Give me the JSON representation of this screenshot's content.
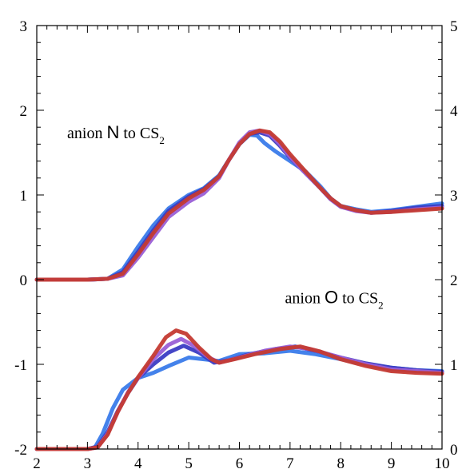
{
  "chart_data": {
    "type": "line",
    "title": "",
    "xlabel": "",
    "ylabel": "",
    "y2label": "",
    "xlim": [
      2,
      10
    ],
    "ylim": [
      -2,
      3
    ],
    "y2lim": [
      0,
      5
    ],
    "x_ticks": [
      2,
      3,
      4,
      5,
      6,
      7,
      8,
      9,
      10
    ],
    "x_tick_labels": [
      "2",
      "3",
      "4",
      "5",
      "6",
      "7",
      "8",
      "9",
      "10"
    ],
    "y_ticks": [
      -2,
      -1,
      0,
      1,
      2,
      3
    ],
    "y_tick_labels": [
      "-2",
      "-1",
      "0",
      "1",
      "2",
      "3"
    ],
    "y2_ticks": [
      0,
      1,
      2,
      3,
      4,
      5
    ],
    "y2_tick_labels": [
      "0",
      "1",
      "2",
      "3",
      "4",
      "5"
    ],
    "grid": false,
    "legend": "none",
    "annotations": [
      {
        "prefix": "anion ",
        "atom": "N",
        "suffix": " to CS",
        "sub": "2",
        "x": 2.6,
        "y": 1.67
      },
      {
        "prefix": "anion ",
        "atom": "O",
        "suffix": " to CS",
        "sub": "2",
        "x": 6.9,
        "y": -0.28
      }
    ],
    "series": [
      {
        "group": "N",
        "color": "#3a7bea",
        "points": [
          [
            2,
            0
          ],
          [
            3,
            0
          ],
          [
            3.4,
            0.01
          ],
          [
            3.7,
            0.12
          ],
          [
            4.0,
            0.39
          ],
          [
            4.3,
            0.64
          ],
          [
            4.6,
            0.84
          ],
          [
            5.0,
            1.0
          ],
          [
            5.3,
            1.08
          ],
          [
            5.6,
            1.23
          ],
          [
            5.8,
            1.42
          ],
          [
            6.0,
            1.6
          ],
          [
            6.2,
            1.71
          ],
          [
            6.35,
            1.7
          ],
          [
            6.5,
            1.61
          ],
          [
            6.7,
            1.52
          ],
          [
            7.0,
            1.4
          ],
          [
            7.3,
            1.28
          ],
          [
            7.6,
            1.1
          ],
          [
            7.8,
            0.96
          ],
          [
            8.0,
            0.87
          ],
          [
            8.3,
            0.83
          ],
          [
            8.6,
            0.8
          ],
          [
            9.0,
            0.82
          ],
          [
            9.5,
            0.86
          ],
          [
            10,
            0.9
          ]
        ]
      },
      {
        "group": "N",
        "color": "#3b3cc4",
        "points": [
          [
            2,
            0
          ],
          [
            3,
            0
          ],
          [
            3.4,
            0.01
          ],
          [
            3.7,
            0.09
          ],
          [
            4.0,
            0.33
          ],
          [
            4.3,
            0.58
          ],
          [
            4.6,
            0.81
          ],
          [
            5.0,
            0.98
          ],
          [
            5.3,
            1.07
          ],
          [
            5.6,
            1.22
          ],
          [
            5.8,
            1.42
          ],
          [
            6.0,
            1.6
          ],
          [
            6.2,
            1.72
          ],
          [
            6.4,
            1.74
          ],
          [
            6.6,
            1.7
          ],
          [
            6.8,
            1.58
          ],
          [
            7.0,
            1.44
          ],
          [
            7.3,
            1.26
          ],
          [
            7.6,
            1.08
          ],
          [
            7.8,
            0.95
          ],
          [
            8.0,
            0.86
          ],
          [
            8.3,
            0.82
          ],
          [
            8.6,
            0.79
          ],
          [
            9.0,
            0.81
          ],
          [
            9.5,
            0.85
          ],
          [
            10,
            0.87
          ]
        ]
      },
      {
        "group": "N",
        "color": "#9a5fd6",
        "points": [
          [
            2,
            0
          ],
          [
            3,
            0
          ],
          [
            3.4,
            0.01
          ],
          [
            3.7,
            0.05
          ],
          [
            4.0,
            0.26
          ],
          [
            4.3,
            0.5
          ],
          [
            4.6,
            0.74
          ],
          [
            5.0,
            0.92
          ],
          [
            5.3,
            1.02
          ],
          [
            5.6,
            1.2
          ],
          [
            5.8,
            1.42
          ],
          [
            6.0,
            1.62
          ],
          [
            6.2,
            1.74
          ],
          [
            6.4,
            1.76
          ],
          [
            6.6,
            1.72
          ],
          [
            6.8,
            1.6
          ],
          [
            7.0,
            1.45
          ],
          [
            7.3,
            1.26
          ],
          [
            7.6,
            1.08
          ],
          [
            7.8,
            0.95
          ],
          [
            8.0,
            0.86
          ],
          [
            8.3,
            0.81
          ],
          [
            8.6,
            0.79
          ],
          [
            9.0,
            0.8
          ],
          [
            9.5,
            0.83
          ],
          [
            10,
            0.85
          ]
        ]
      },
      {
        "group": "N",
        "color": "#c43a32",
        "points": [
          [
            2,
            0
          ],
          [
            3,
            0
          ],
          [
            3.4,
            0.01
          ],
          [
            3.7,
            0.07
          ],
          [
            4.0,
            0.3
          ],
          [
            4.3,
            0.55
          ],
          [
            4.6,
            0.78
          ],
          [
            5.0,
            0.96
          ],
          [
            5.3,
            1.06
          ],
          [
            5.6,
            1.22
          ],
          [
            5.8,
            1.42
          ],
          [
            6.0,
            1.6
          ],
          [
            6.2,
            1.72
          ],
          [
            6.4,
            1.76
          ],
          [
            6.6,
            1.74
          ],
          [
            6.8,
            1.63
          ],
          [
            7.0,
            1.48
          ],
          [
            7.3,
            1.28
          ],
          [
            7.6,
            1.08
          ],
          [
            7.8,
            0.96
          ],
          [
            8.0,
            0.87
          ],
          [
            8.3,
            0.82
          ],
          [
            8.6,
            0.79
          ],
          [
            9.0,
            0.8
          ],
          [
            9.5,
            0.82
          ],
          [
            10,
            0.84
          ]
        ]
      },
      {
        "group": "O",
        "color": "#3a7bea",
        "points": [
          [
            2,
            -2
          ],
          [
            3,
            -2
          ],
          [
            3.15,
            -1.98
          ],
          [
            3.3,
            -1.82
          ],
          [
            3.5,
            -1.52
          ],
          [
            3.7,
            -1.3
          ],
          [
            4.0,
            -1.16
          ],
          [
            4.3,
            -1.1
          ],
          [
            4.6,
            -1.02
          ],
          [
            5.0,
            -0.92
          ],
          [
            5.3,
            -0.94
          ],
          [
            5.6,
            -0.96
          ],
          [
            6.0,
            -0.88
          ],
          [
            6.5,
            -0.87
          ],
          [
            7.0,
            -0.84
          ],
          [
            7.5,
            -0.88
          ],
          [
            8.0,
            -0.94
          ],
          [
            8.5,
            -1.0
          ],
          [
            9.0,
            -1.04
          ],
          [
            9.5,
            -1.07
          ],
          [
            10,
            -1.08
          ]
        ]
      },
      {
        "group": "O",
        "color": "#3b3cc4",
        "points": [
          [
            2,
            -2
          ],
          [
            3,
            -2
          ],
          [
            3.2,
            -1.97
          ],
          [
            3.4,
            -1.8
          ],
          [
            3.6,
            -1.55
          ],
          [
            3.8,
            -1.34
          ],
          [
            4.0,
            -1.16
          ],
          [
            4.3,
            -1.0
          ],
          [
            4.6,
            -0.86
          ],
          [
            4.9,
            -0.78
          ],
          [
            5.2,
            -0.86
          ],
          [
            5.5,
            -0.98
          ],
          [
            5.8,
            -0.95
          ],
          [
            6.2,
            -0.88
          ],
          [
            6.7,
            -0.82
          ],
          [
            7.1,
            -0.79
          ],
          [
            7.5,
            -0.84
          ],
          [
            8.0,
            -0.92
          ],
          [
            8.5,
            -0.99
          ],
          [
            9.0,
            -1.04
          ],
          [
            9.5,
            -1.07
          ],
          [
            10,
            -1.09
          ]
        ]
      },
      {
        "group": "O",
        "color": "#9a5fd6",
        "points": [
          [
            2,
            -2
          ],
          [
            3,
            -2
          ],
          [
            3.2,
            -1.98
          ],
          [
            3.4,
            -1.82
          ],
          [
            3.6,
            -1.56
          ],
          [
            3.8,
            -1.33
          ],
          [
            4.0,
            -1.16
          ],
          [
            4.3,
            -0.94
          ],
          [
            4.6,
            -0.77
          ],
          [
            4.85,
            -0.7
          ],
          [
            5.1,
            -0.78
          ],
          [
            5.4,
            -0.92
          ],
          [
            5.6,
            -0.98
          ],
          [
            6.0,
            -0.92
          ],
          [
            6.5,
            -0.84
          ],
          [
            7.0,
            -0.79
          ],
          [
            7.4,
            -0.82
          ],
          [
            8.0,
            -0.92
          ],
          [
            8.5,
            -1.0
          ],
          [
            9.0,
            -1.06
          ],
          [
            9.5,
            -1.08
          ],
          [
            10,
            -1.1
          ]
        ]
      },
      {
        "group": "O",
        "color": "#c43a32",
        "points": [
          [
            2,
            -2
          ],
          [
            3,
            -2
          ],
          [
            3.2,
            -1.98
          ],
          [
            3.4,
            -1.83
          ],
          [
            3.6,
            -1.56
          ],
          [
            3.8,
            -1.34
          ],
          [
            4.0,
            -1.15
          ],
          [
            4.3,
            -0.9
          ],
          [
            4.55,
            -0.68
          ],
          [
            4.75,
            -0.6
          ],
          [
            4.95,
            -0.64
          ],
          [
            5.2,
            -0.8
          ],
          [
            5.45,
            -0.94
          ],
          [
            5.6,
            -0.98
          ],
          [
            5.9,
            -0.94
          ],
          [
            6.3,
            -0.88
          ],
          [
            6.8,
            -0.82
          ],
          [
            7.2,
            -0.79
          ],
          [
            7.6,
            -0.85
          ],
          [
            8.0,
            -0.94
          ],
          [
            8.5,
            -1.02
          ],
          [
            9.0,
            -1.08
          ],
          [
            9.5,
            -1.1
          ],
          [
            10,
            -1.11
          ]
        ]
      }
    ]
  }
}
